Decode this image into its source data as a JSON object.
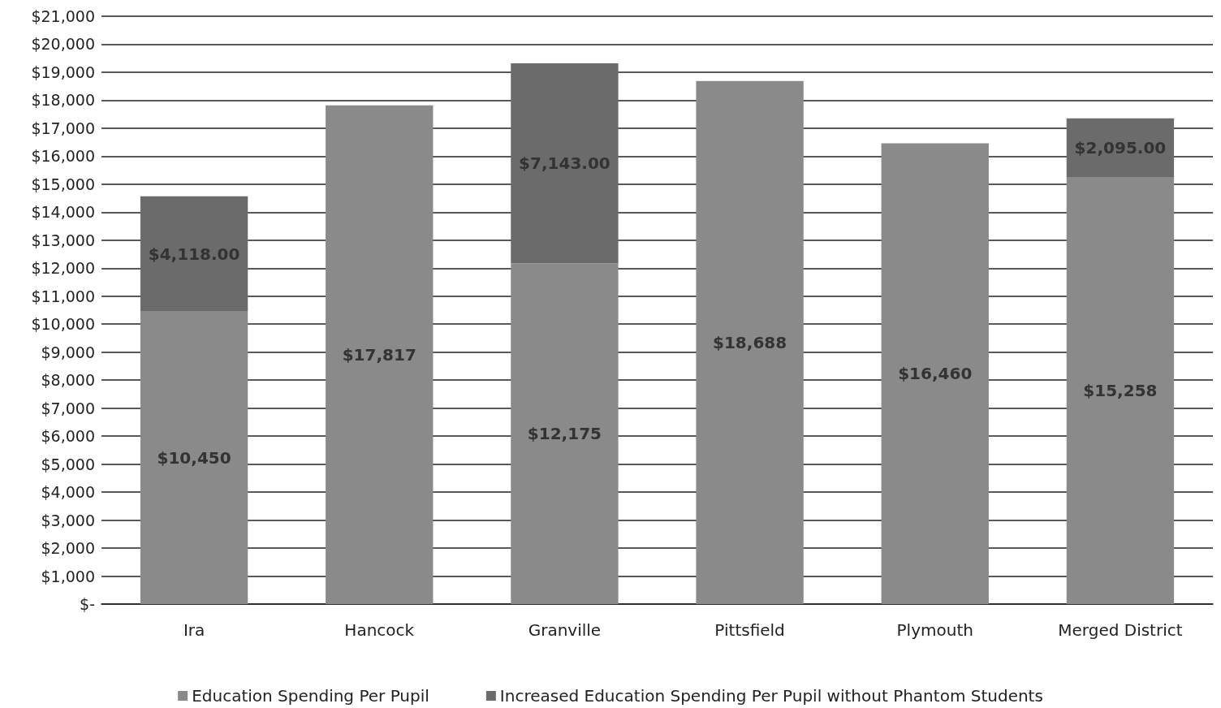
{
  "chart_data": {
    "type": "bar",
    "stacked": true,
    "categories": [
      "Ira",
      "Hancock",
      "Granville",
      "Pittsfield",
      "Plymouth",
      "Merged District"
    ],
    "series": [
      {
        "name": "Education Spending Per Pupil",
        "color": "#8a8a8a",
        "values": [
          10450,
          17817,
          12175,
          18688,
          16460,
          15258
        ],
        "value_labels": [
          "$10,450",
          "$17,817",
          "$12,175",
          "$18,688",
          "$16,460",
          "$15,258"
        ]
      },
      {
        "name": "Increased Education Spending Per Pupil without Phantom Students",
        "color": "#6b6b6b",
        "values": [
          4118,
          null,
          7143,
          null,
          null,
          2095
        ],
        "value_labels": [
          "$4,118.00",
          null,
          "$7,143.00",
          null,
          null,
          "$2,095.00"
        ]
      }
    ],
    "ylim": [
      0,
      21000
    ],
    "yticks": [
      {
        "value": 0,
        "label": "$-"
      },
      {
        "value": 1000,
        "label": "$1,000"
      },
      {
        "value": 2000,
        "label": "$2,000"
      },
      {
        "value": 3000,
        "label": "$3,000"
      },
      {
        "value": 4000,
        "label": "$4,000"
      },
      {
        "value": 5000,
        "label": "$5,000"
      },
      {
        "value": 6000,
        "label": "$6,000"
      },
      {
        "value": 7000,
        "label": "$7,000"
      },
      {
        "value": 8000,
        "label": "$8,000"
      },
      {
        "value": 9000,
        "label": "$9,000"
      },
      {
        "value": 10000,
        "label": "$10,000"
      },
      {
        "value": 11000,
        "label": "$11,000"
      },
      {
        "value": 12000,
        "label": "$12,000"
      },
      {
        "value": 13000,
        "label": "$13,000"
      },
      {
        "value": 14000,
        "label": "$14,000"
      },
      {
        "value": 15000,
        "label": "$15,000"
      },
      {
        "value": 16000,
        "label": "$16,000"
      },
      {
        "value": 17000,
        "label": "$17,000"
      },
      {
        "value": 18000,
        "label": "$18,000"
      },
      {
        "value": 19000,
        "label": "$19,000"
      },
      {
        "value": 20000,
        "label": "$20,000"
      },
      {
        "value": 21000,
        "label": "$21,000"
      }
    ],
    "grid": "y",
    "legend": "bottom"
  }
}
